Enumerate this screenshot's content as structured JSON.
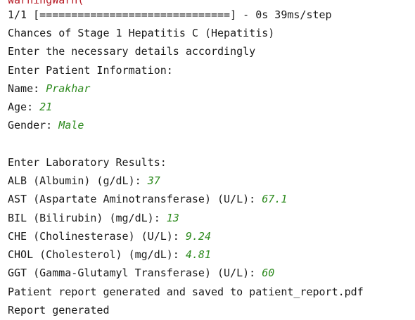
{
  "console": {
    "cutoff_line": "WarningWarn(",
    "progress_line": "1/1 [==============================] - 0s 39ms/step",
    "header": {
      "title": "Chances of Stage 1 Hepatitis C (Hepatitis)",
      "instruction": "Enter the necessary details accordingly"
    },
    "patient": {
      "section_title": "Enter Patient Information:",
      "fields": [
        {
          "label": "Name: ",
          "value": "Prakhar"
        },
        {
          "label": "Age: ",
          "value": "21"
        },
        {
          "label": "Gender: ",
          "value": "Male"
        }
      ]
    },
    "lab": {
      "section_title": "Enter Laboratory Results:",
      "fields": [
        {
          "label": "ALB (Albumin) (g/dL): ",
          "value": "37"
        },
        {
          "label": "AST (Aspartate Aminotransferase) (U/L): ",
          "value": "67.1"
        },
        {
          "label": "BIL (Bilirubin) (mg/dL): ",
          "value": "13"
        },
        {
          "label": "CHE (Cholinesterase) (U/L): ",
          "value": "9.24"
        },
        {
          "label": "CHOL (Cholesterol) (mg/dL): ",
          "value": "4.81"
        },
        {
          "label": "GGT (Gamma-Glutamyl Transferase) (U/L): ",
          "value": "60"
        }
      ]
    },
    "saved_message": "Patient report generated and saved to patient_report.pdf",
    "final_message": "Report generated"
  }
}
